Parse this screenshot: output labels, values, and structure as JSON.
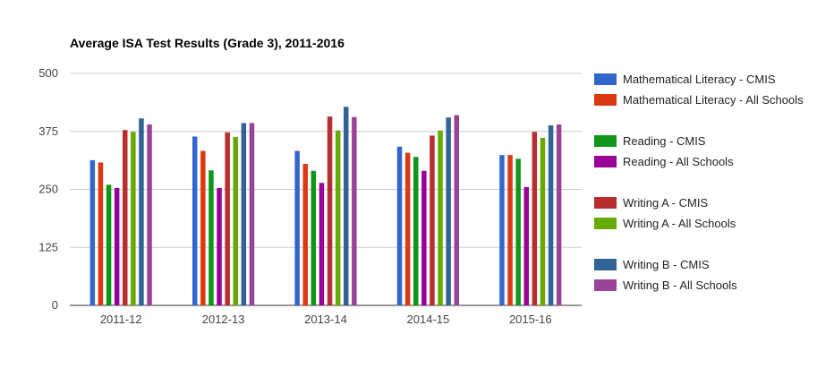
{
  "chart_data": {
    "type": "bar",
    "title": "Average ISA Test Results (Grade 3), 2011-2016",
    "xlabel": "",
    "ylabel": "",
    "ylim": [
      0,
      500
    ],
    "yticks": [
      "0",
      "125",
      "250",
      "375",
      "500"
    ],
    "grid": true,
    "legend_position": "right",
    "categories": [
      "2011-12",
      "2012-13",
      "2013-14",
      "2014-15",
      "2015-16"
    ],
    "series": [
      {
        "name": "Mathematical Literacy - CMIS",
        "color": "#3366cc",
        "values": [
          313,
          364,
          333,
          342,
          324
        ]
      },
      {
        "name": "Mathematical Literacy - All Schools",
        "color": "#dc3912",
        "values": [
          308,
          333,
          305,
          329,
          324
        ]
      },
      {
        "name": "Reading - CMIS",
        "color": "#109618",
        "values": [
          260,
          291,
          290,
          320,
          316
        ]
      },
      {
        "name": "Reading - All Schools",
        "color": "#990099",
        "values": [
          253,
          253,
          264,
          290,
          255
        ]
      },
      {
        "name": "Writing A - CMIS",
        "color": "#b82e2e",
        "values": [
          378,
          373,
          407,
          366,
          374
        ]
      },
      {
        "name": "Writing A - All Schools",
        "color": "#66aa00",
        "values": [
          374,
          363,
          377,
          377,
          361
        ]
      },
      {
        "name": "Writing B - CMIS",
        "color": "#316395",
        "values": [
          403,
          393,
          428,
          405,
          388
        ]
      },
      {
        "name": "Writing B - All Schools",
        "color": "#994499",
        "values": [
          390,
          393,
          406,
          410,
          390
        ]
      }
    ]
  }
}
